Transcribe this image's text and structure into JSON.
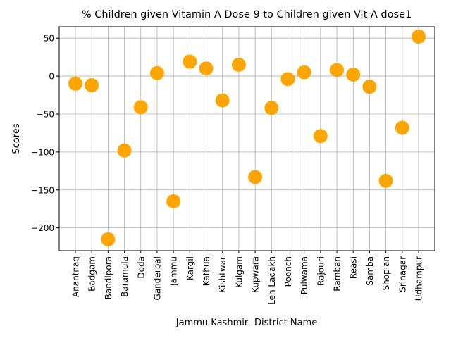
{
  "chart_data": {
    "type": "scatter",
    "title": "% Children given Vitamin A Dose 9 to Children given Vit A dose1",
    "xlabel": "Jammu Kashmir -District Name",
    "ylabel": "Scores",
    "categories": [
      "Anantnag",
      "Badgam",
      "Bandipora",
      "Baramula",
      "Doda",
      "Ganderbal",
      "Jammu",
      "Kargil",
      "Kathua",
      "Kishtwar",
      "Kulgam",
      "Kupwara",
      "Leh Ladakh",
      "Poonch",
      "Pulwama",
      "Rajouri",
      "Ramban",
      "Reasi",
      "Samba",
      "Shopian",
      "Srinagar",
      "Udhampur"
    ],
    "series": [
      {
        "values": [
          -10,
          -12,
          -215,
          -98,
          -41,
          4,
          -165,
          19,
          10,
          -32,
          15,
          -133,
          -42,
          -4,
          5,
          -79,
          8,
          2,
          -14,
          -138,
          -68,
          52
        ]
      }
    ],
    "ylim": [
      -230,
      65
    ],
    "yticks": [
      50,
      0,
      -50,
      -100,
      -150,
      -200
    ],
    "ytick_labels": [
      "50",
      "0",
      "−50",
      "−100",
      "−150",
      "−200"
    ],
    "grid": true,
    "marker_color": "#ffa500"
  }
}
